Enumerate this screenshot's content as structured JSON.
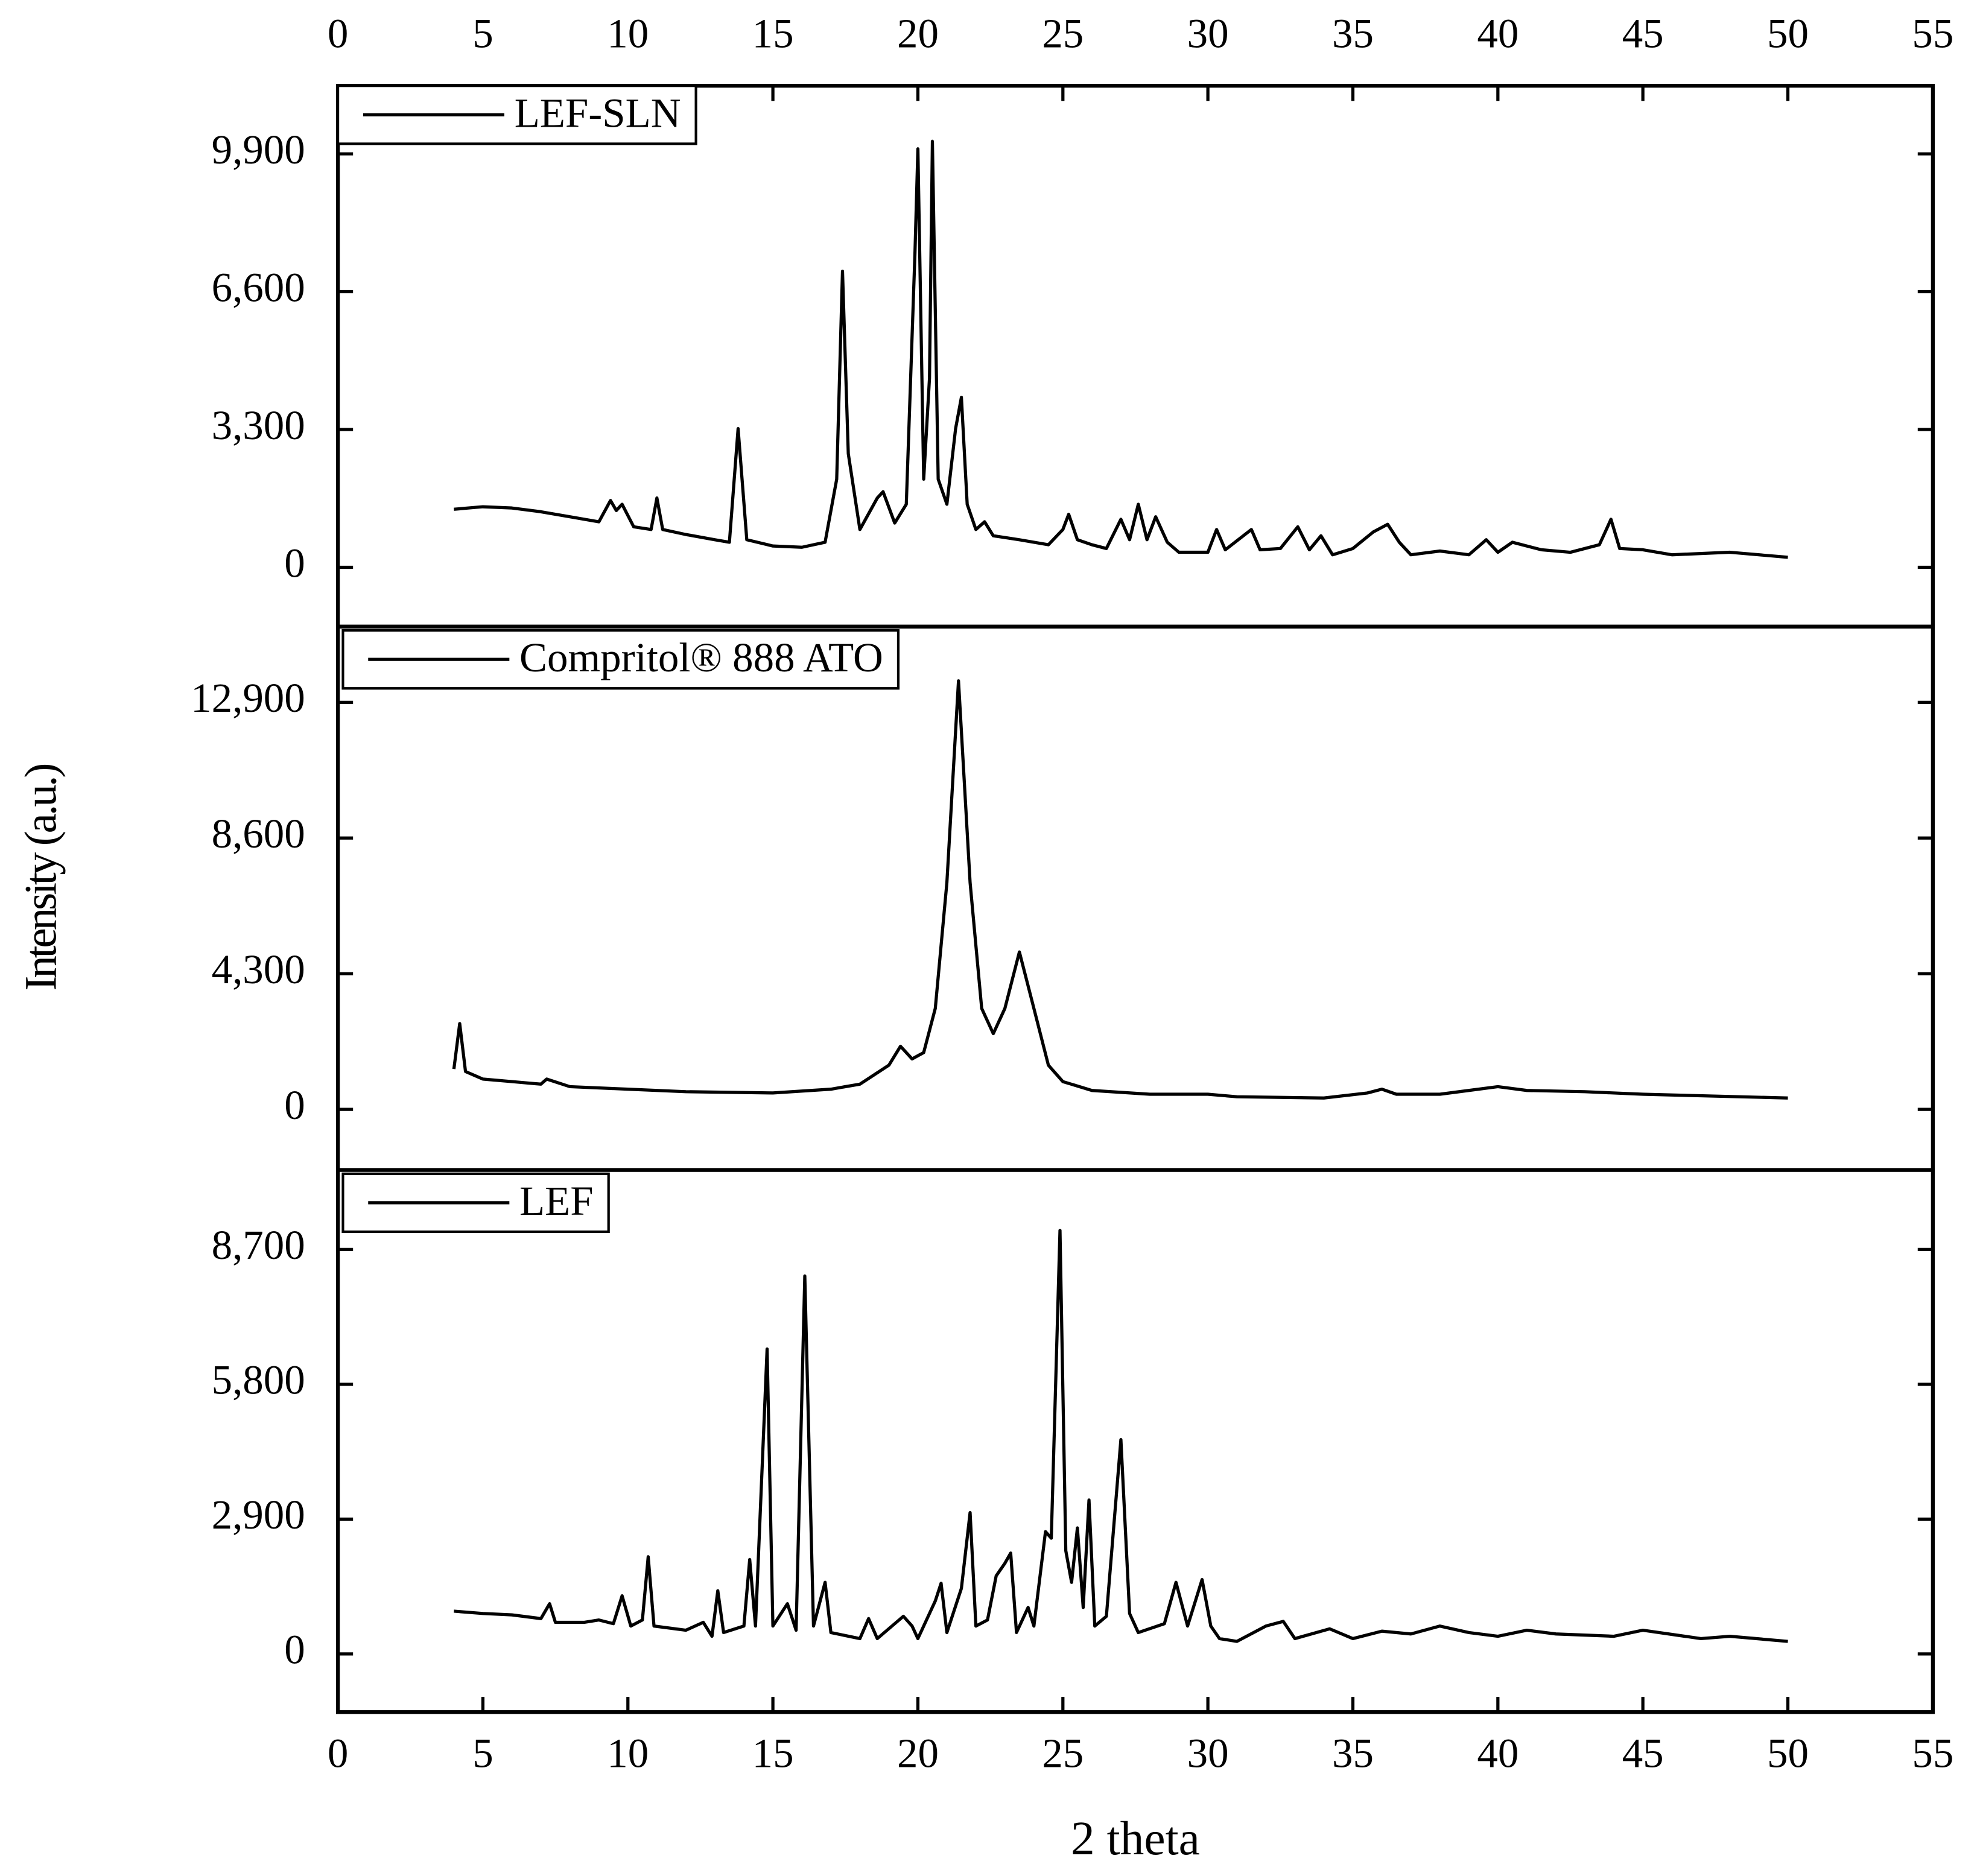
{
  "chart_data": [
    {
      "type": "line",
      "xaxis_position": "top",
      "legend": "upper left",
      "xlim": [
        0,
        55
      ],
      "xticks": [
        0,
        5,
        10,
        15,
        20,
        25,
        30,
        35,
        40,
        45,
        50,
        55
      ],
      "ylim": [
        -1420,
        11530
      ],
      "yticks": [
        0,
        {
          "value": 3300,
          "label": "3,300"
        },
        {
          "value": 6600,
          "label": "6,600"
        },
        {
          "value": 9900,
          "label": "9,900"
        }
      ],
      "x": [
        4,
        5,
        6,
        7,
        8,
        9,
        9.4,
        9.6,
        9.8,
        10.2,
        10.8,
        11.0,
        11.2,
        12,
        13,
        13.5,
        13.8,
        14.1,
        15,
        16,
        16.8,
        17.2,
        17.4,
        17.6,
        18,
        18.6,
        18.8,
        19.2,
        19.6,
        19.9,
        20.0,
        20.2,
        20.4,
        20.5,
        20.7,
        21.0,
        21.3,
        21.5,
        21.7,
        22,
        22.3,
        22.6,
        23.5,
        24.5,
        25.0,
        25.2,
        25.5,
        26,
        26.5,
        27,
        27.3,
        27.6,
        27.9,
        28.2,
        28.6,
        29,
        30,
        30.3,
        30.6,
        31.5,
        31.8,
        32.5,
        33.1,
        33.5,
        33.9,
        34.3,
        35,
        35.7,
        36.2,
        36.6,
        37,
        38,
        39.0,
        39.6,
        40.0,
        40.5,
        41.5,
        42.5,
        43.5,
        43.9,
        44.2,
        45,
        46,
        48,
        50
      ],
      "series": [
        {
          "name": "LEF-SLN",
          "color": "#000000",
          "values": [
            1390,
            1450,
            1420,
            1330,
            1210,
            1090,
            1600,
            1360,
            1510,
            970,
            905,
            1660,
            905,
            785,
            660,
            600,
            3320,
            660,
            510,
            480,
            600,
            2110,
            7090,
            2720,
            905,
            1660,
            1810,
            1060,
            1510,
            7550,
            10020,
            2110,
            4530,
            10200,
            2110,
            1510,
            3320,
            4070,
            1510,
            905,
            1090,
            755,
            660,
            540,
            905,
            1270,
            660,
            540,
            450,
            1150,
            660,
            1510,
            660,
            1210,
            600,
            360,
            360,
            905,
            420,
            905,
            420,
            450,
            970,
            420,
            755,
            300,
            450,
            845,
            1030,
            600,
            300,
            390,
            300,
            660,
            360,
            600,
            420,
            360,
            540,
            1150,
            450,
            420,
            300,
            360,
            240
          ]
        }
      ]
    },
    {
      "type": "line",
      "legend": "upper left",
      "ylabel": "Intensity (a.u.)",
      "xlim": [
        0,
        55
      ],
      "ylim": [
        -1920,
        15300
      ],
      "yticks": [
        0,
        {
          "value": 4300,
          "label": "4,300"
        },
        {
          "value": 8600,
          "label": "8,600"
        },
        {
          "value": 12900,
          "label": "12,900"
        }
      ],
      "x": [
        4,
        4.2,
        4.4,
        5,
        6,
        7,
        7.2,
        8,
        10,
        12,
        15,
        17,
        18,
        19,
        19.4,
        19.8,
        20.2,
        20.6,
        21.0,
        21.4,
        21.8,
        22.2,
        22.6,
        23.0,
        23.5,
        24.0,
        24.5,
        25,
        26,
        28,
        30,
        31,
        34,
        35.5,
        36,
        36.5,
        38,
        40,
        41,
        43,
        45,
        50
      ],
      "series": [
        {
          "name": "Compritol® 888 ATO",
          "color": "#000000",
          "values": [
            1280,
            2720,
            1200,
            960,
            880,
            800,
            960,
            720,
            640,
            560,
            520,
            640,
            800,
            1400,
            2000,
            1600,
            1800,
            3200,
            7190,
            13580,
            7190,
            3200,
            2400,
            3200,
            4990,
            3200,
            1400,
            880,
            600,
            480,
            480,
            400,
            360,
            520,
            640,
            480,
            480,
            720,
            600,
            560,
            480,
            360
          ]
        }
      ]
    },
    {
      "type": "line",
      "xaxis_position": "bottom",
      "legend": "upper left",
      "xlabel": "2 theta",
      "xlim": [
        0,
        55
      ],
      "xticks": [
        0,
        5,
        10,
        15,
        20,
        25,
        30,
        35,
        40,
        45,
        50,
        55
      ],
      "ylim": [
        -1250,
        10410
      ],
      "yticks": [
        0,
        {
          "value": 2900,
          "label": "2,900"
        },
        {
          "value": 5800,
          "label": "5,800"
        },
        {
          "value": 8700,
          "label": "8,700"
        }
      ],
      "x": [
        4,
        5,
        6,
        7,
        7.3,
        7.5,
        8.5,
        9,
        9.5,
        9.8,
        10.1,
        10.5,
        10.7,
        10.9,
        12,
        12.6,
        12.9,
        13.1,
        13.3,
        14.0,
        14.2,
        14.4,
        14.8,
        15.0,
        15.5,
        15.8,
        16.1,
        16.4,
        16.8,
        17.0,
        18,
        18.3,
        18.6,
        19.5,
        19.8,
        20.0,
        20.6,
        20.8,
        21.0,
        21.5,
        21.8,
        22.0,
        22.4,
        22.7,
        23.0,
        23.2,
        23.4,
        23.8,
        24.0,
        24.4,
        24.6,
        24.9,
        25.1,
        25.3,
        25.5,
        25.7,
        25.9,
        26.1,
        26.5,
        27.0,
        27.3,
        27.6,
        28.5,
        28.9,
        29.3,
        29.8,
        30.1,
        30.4,
        31,
        32,
        32.6,
        33,
        34.2,
        35,
        36,
        37,
        38,
        39,
        40,
        41,
        42,
        44,
        45,
        47,
        48,
        50
      ],
      "series": [
        {
          "name": "LEF",
          "color": "#000000",
          "values": [
            920,
            870,
            840,
            760,
            1080,
            680,
            680,
            730,
            650,
            1250,
            600,
            730,
            2090,
            600,
            510,
            680,
            380,
            1360,
            460,
            600,
            2030,
            600,
            6560,
            600,
            1080,
            510,
            8130,
            600,
            1540,
            460,
            330,
            760,
            330,
            810,
            600,
            330,
            1140,
            1520,
            460,
            1410,
            3040,
            600,
            730,
            1680,
            1950,
            2170,
            460,
            1000,
            600,
            2630,
            2490,
            9110,
            2220,
            1540,
            2710,
            1000,
            3310,
            600,
            810,
            4610,
            870,
            460,
            650,
            1540,
            600,
            1600,
            600,
            330,
            270,
            600,
            700,
            330,
            540,
            330,
            490,
            430,
            600,
            460,
            380,
            510,
            430,
            380,
            510,
            330,
            380,
            270
          ]
        }
      ]
    }
  ]
}
